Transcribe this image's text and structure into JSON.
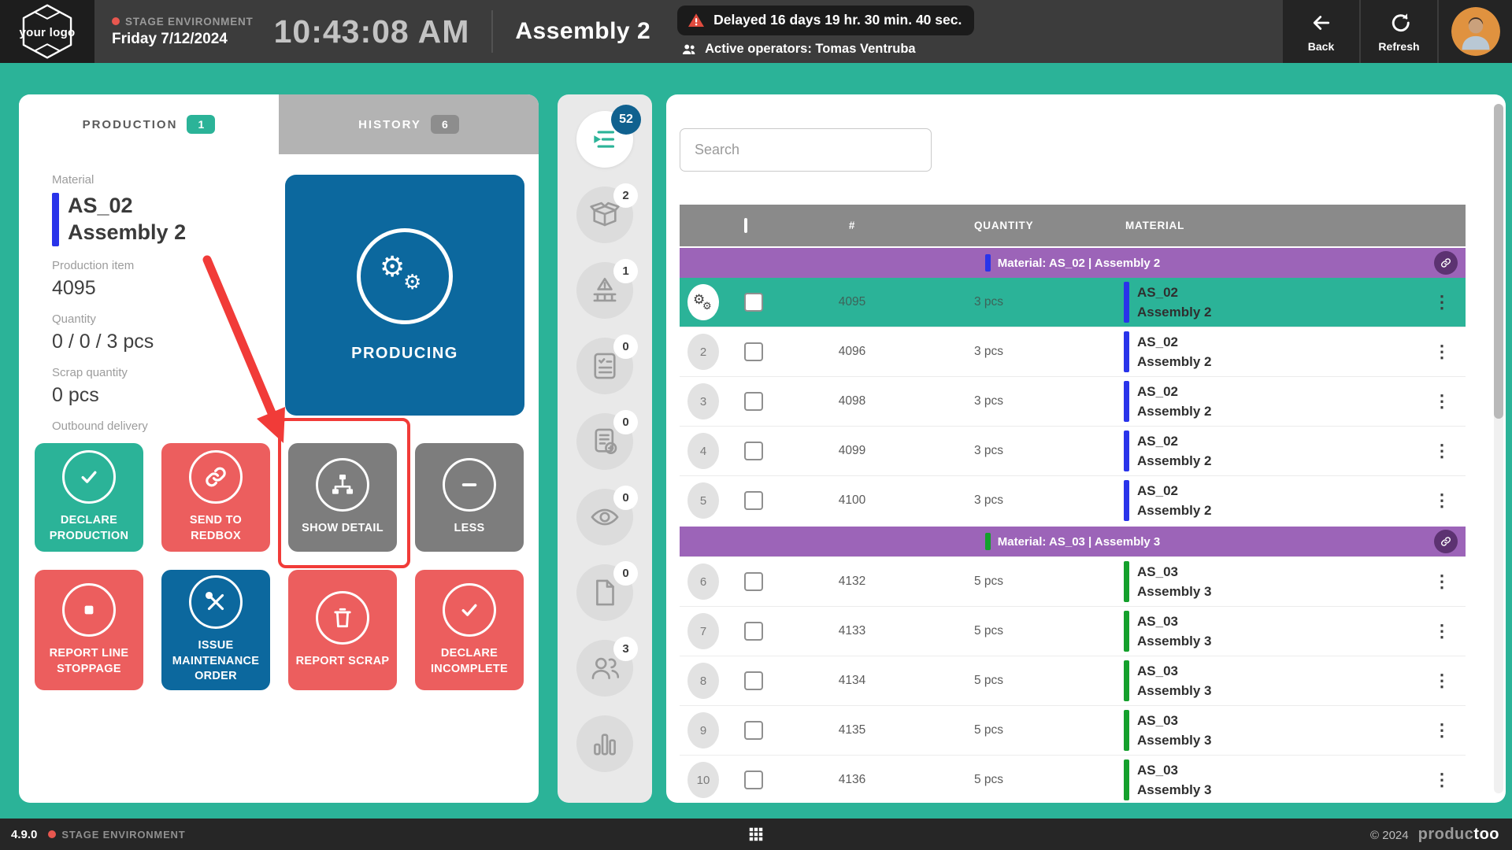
{
  "header": {
    "logo_text": "your logo",
    "environment": "STAGE ENVIRONMENT",
    "date": "Friday 7/12/2024",
    "time": "10:43:08 AM",
    "title": "Assembly 2",
    "alert": "Delayed 16 days 19 hr. 30 min. 40 sec.",
    "operators": "Active operators: Tomas Ventruba",
    "back_label": "Back",
    "refresh_label": "Refresh"
  },
  "tabs": {
    "production": "PRODUCTION",
    "production_count": "1",
    "history": "HISTORY",
    "history_count": "6"
  },
  "details": {
    "material_label": "Material",
    "material_code": "AS_02",
    "material_name": "Assembly 2",
    "material_color": "#2934ea",
    "production_item_label": "Production item",
    "production_item": "4095",
    "quantity_label": "Quantity",
    "quantity": "0 / 0 / 3 pcs",
    "scrap_label": "Scrap quantity",
    "scrap": "0 pcs",
    "outbound_label": "Outbound delivery",
    "outbound": "-"
  },
  "status_tile": {
    "label": "PRODUCING",
    "color": "#0c689e"
  },
  "actions": [
    {
      "label": "DECLARE PRODUCTION",
      "icon": "check",
      "color": "teal"
    },
    {
      "label": "SEND TO REDBOX",
      "icon": "link",
      "color": "red"
    },
    {
      "label": "SHOW DETAIL",
      "icon": "sitemap",
      "color": "gray"
    },
    {
      "label": "LESS",
      "icon": "minus",
      "color": "gray"
    },
    {
      "label": "REPORT LINE STOPPAGE",
      "icon": "stop",
      "color": "red"
    },
    {
      "label": "ISSUE MAINTENANCE ORDER",
      "icon": "tools",
      "color": "blue"
    },
    {
      "label": "REPORT SCRAP",
      "icon": "trash",
      "color": "red"
    },
    {
      "label": "DECLARE INCOMPLETE",
      "icon": "check",
      "color": "red"
    }
  ],
  "rail": {
    "items": [
      {
        "icon": "production-queue",
        "badge": "52",
        "active": true
      },
      {
        "icon": "box",
        "badge": "2",
        "active": false
      },
      {
        "icon": "line-warning",
        "badge": "1",
        "active": false
      },
      {
        "icon": "checklist",
        "badge": "0",
        "active": false
      },
      {
        "icon": "document-action",
        "badge": "0",
        "active": false
      },
      {
        "icon": "eye",
        "badge": "0",
        "active": false
      },
      {
        "icon": "file",
        "badge": "0",
        "active": false
      },
      {
        "icon": "people",
        "badge": "3",
        "active": false
      },
      {
        "icon": "bar-chart",
        "badge": null,
        "active": false
      }
    ]
  },
  "list": {
    "search_placeholder": "Search",
    "columns": [
      "#",
      "QUANTITY",
      "MATERIAL"
    ],
    "groups": [
      {
        "label": "Material: AS_02 | Assembly 2",
        "color": "#2934ea",
        "rows": [
          {
            "index": "",
            "item": "4095",
            "qty": "3 pcs",
            "code": "AS_02",
            "name": "Assembly 2",
            "selected": true
          },
          {
            "index": "2",
            "item": "4096",
            "qty": "3 pcs",
            "code": "AS_02",
            "name": "Assembly 2",
            "selected": false
          },
          {
            "index": "3",
            "item": "4098",
            "qty": "3 pcs",
            "code": "AS_02",
            "name": "Assembly 2",
            "selected": false
          },
          {
            "index": "4",
            "item": "4099",
            "qty": "3 pcs",
            "code": "AS_02",
            "name": "Assembly 2",
            "selected": false
          },
          {
            "index": "5",
            "item": "4100",
            "qty": "3 pcs",
            "code": "AS_02",
            "name": "Assembly 2",
            "selected": false
          }
        ]
      },
      {
        "label": "Material: AS_03 | Assembly 3",
        "color": "#14a02c",
        "rows": [
          {
            "index": "6",
            "item": "4132",
            "qty": "5 pcs",
            "code": "AS_03",
            "name": "Assembly 3",
            "selected": false
          },
          {
            "index": "7",
            "item": "4133",
            "qty": "5 pcs",
            "code": "AS_03",
            "name": "Assembly 3",
            "selected": false
          },
          {
            "index": "8",
            "item": "4134",
            "qty": "5 pcs",
            "code": "AS_03",
            "name": "Assembly 3",
            "selected": false
          },
          {
            "index": "9",
            "item": "4135",
            "qty": "5 pcs",
            "code": "AS_03",
            "name": "Assembly 3",
            "selected": false
          },
          {
            "index": "10",
            "item": "4136",
            "qty": "5 pcs",
            "code": "AS_03",
            "name": "Assembly 3",
            "selected": false
          }
        ]
      }
    ]
  },
  "footer": {
    "version": "4.9.0",
    "environment": "STAGE ENVIRONMENT",
    "copyright": "© 2024",
    "brand_left": "produc",
    "brand_right": "too"
  }
}
